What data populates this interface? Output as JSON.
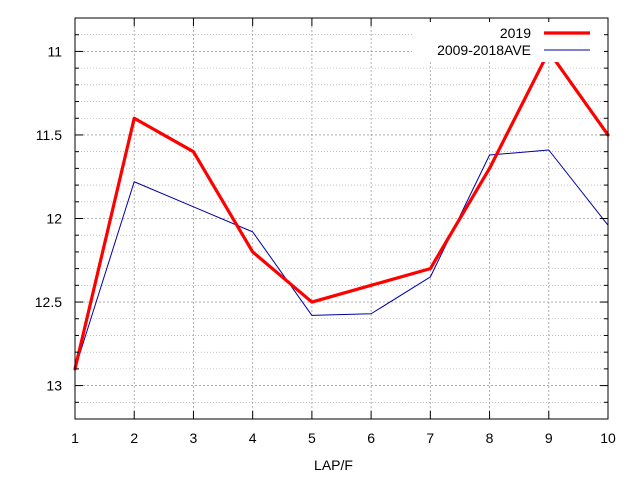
{
  "chart_data": {
    "type": "line",
    "title": "",
    "xlabel": "LAP/F",
    "ylabel": "",
    "x": [
      1,
      2,
      3,
      4,
      5,
      6,
      7,
      8,
      9,
      10
    ],
    "xlim": [
      1,
      10
    ],
    "ylim": [
      10.8,
      13.2
    ],
    "y_inverted": true,
    "x_ticks": [
      1,
      2,
      3,
      4,
      5,
      6,
      7,
      8,
      9,
      10
    ],
    "y_ticks": [
      11,
      11.5,
      12,
      12.5,
      13
    ],
    "y_minor_step": 0.1,
    "grid": true,
    "legend_position": "top-right",
    "series": [
      {
        "name": "2019",
        "color": "#ff0000",
        "values": [
          12.9,
          11.4,
          11.6,
          12.2,
          12.5,
          12.4,
          12.3,
          11.7,
          11.0,
          11.5
        ]
      },
      {
        "name": "2009-2018AVE",
        "color": "#0000a0",
        "values": [
          12.9,
          11.78,
          11.93,
          12.08,
          12.58,
          12.57,
          12.35,
          11.62,
          11.59,
          12.04
        ]
      }
    ]
  }
}
